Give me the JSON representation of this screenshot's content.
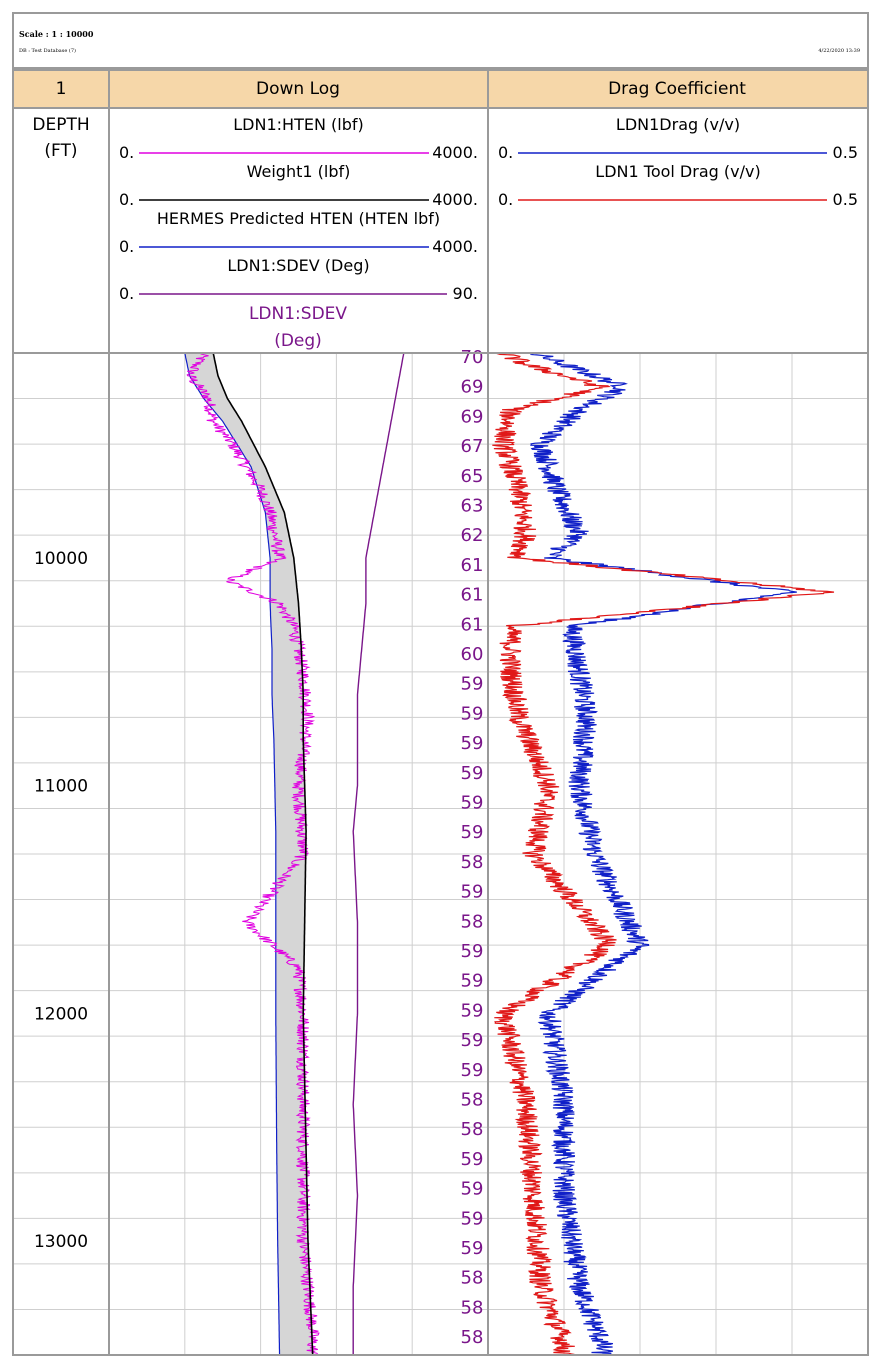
{
  "meta": {
    "scale": "Scale : 1 : 10000",
    "database": "DB : Test Database (7)",
    "datetime": "4/22/2020 13:39"
  },
  "header": {
    "col1": "1",
    "col2": "Down Log",
    "col3": "Drag Coefficient",
    "depth_label": "DEPTH",
    "depth_unit": "(FT)"
  },
  "colors": {
    "header_bg": "#f6d7a9",
    "magenta": "#e000e0",
    "black": "#000000",
    "blue": "#1020c8",
    "purple": "#7a168a",
    "red": "#e01818",
    "fill": "#d6d6d6",
    "grid_major": "#a0a0a0",
    "grid_minor": "#cfcfcf"
  },
  "chart_data": {
    "type": "line",
    "depth_axis": {
      "label": "DEPTH (FT)",
      "range": [
        9100,
        13500
      ],
      "ticks": [
        10000,
        11000,
        12000,
        13000
      ],
      "reversed": true
    },
    "tracks": [
      {
        "name": "Down Log",
        "curves": [
          {
            "name": "LDN1:HTEN (lbf)",
            "range": [
              0,
              4000
            ],
            "range_labels": [
              "0.",
              "4000."
            ],
            "color": "magenta",
            "depth": [
              9100,
              9200,
              9300,
              9400,
              9500,
              9600,
              9700,
              9800,
              9900,
              10000,
              10100,
              10200,
              10300,
              10500,
              10700,
              11000,
              11300,
              11600,
              11800,
              12000,
              12500,
              13000,
              13400
            ],
            "values": [
              1000,
              850,
              1050,
              1100,
              1300,
              1450,
              1600,
              1700,
              1750,
              1800,
              1250,
              1800,
              1950,
              2050,
              2100,
              2000,
              2050,
              1450,
              2000,
              2050,
              2050,
              2050,
              2150
            ]
          },
          {
            "name": "Weight1 (lbf)",
            "range": [
              0,
              4000
            ],
            "range_labels": [
              "0.",
              "4000."
            ],
            "color": "black",
            "depth": [
              9100,
              9200,
              9300,
              9400,
              9600,
              9800,
              10000,
              10200,
              10400,
              10600,
              10800,
              11200,
              12000,
              12600,
              13000,
              13500
            ],
            "values": [
              1100,
              1150,
              1250,
              1400,
              1650,
              1850,
              1950,
              2000,
              2030,
              2050,
              2050,
              2080,
              2050,
              2080,
              2100,
              2150
            ]
          },
          {
            "name": "HERMES Predicted HTEN (HTEN lbf)",
            "range": [
              0,
              4000
            ],
            "range_labels": [
              "0.",
              "4000."
            ],
            "color": "blue",
            "depth": [
              9100,
              9200,
              9300,
              9400,
              9600,
              9800,
              10000,
              10200,
              10400,
              10600,
              10800,
              11200,
              12000,
              12600,
              13000,
              13500
            ],
            "values": [
              800,
              850,
              1000,
              1200,
              1500,
              1650,
              1700,
              1700,
              1720,
              1720,
              1740,
              1760,
              1760,
              1770,
              1780,
              1800
            ]
          },
          {
            "name": "LDN1:SDEV (Deg)",
            "range": [
              0,
              90
            ],
            "range_labels": [
              "0.",
              "90."
            ],
            "color": "purple",
            "depth": [
              9100,
              9200,
              9400,
              9600,
              9800,
              10000,
              10200,
              10400,
              10600,
              10800,
              11000,
              11200,
              11600,
              12000,
              12400,
              12800,
              13200,
              13500
            ],
            "values": [
              70,
              69,
              67,
              65,
              63,
              61,
              61,
              60,
              59,
              59,
              59,
              58,
              59,
              59,
              58,
              59,
              58,
              58
            ]
          }
        ],
        "annotation": [
          "LDN1:SDEV",
          "(Deg)"
        ],
        "sdev_labels": [
          "70",
          "69",
          "69",
          "67",
          "65",
          "63",
          "62",
          "61",
          "61",
          "61",
          "60",
          "59",
          "59",
          "59",
          "59",
          "59",
          "59",
          "58",
          "59",
          "58",
          "59",
          "59",
          "59",
          "59",
          "59",
          "58",
          "58",
          "59",
          "59",
          "59",
          "59",
          "58",
          "58",
          "58"
        ]
      },
      {
        "name": "Drag Coefficient",
        "curves": [
          {
            "name": "LDN1Drag (v/v)",
            "range": [
              0,
              0.5
            ],
            "range_labels": [
              "0.",
              "0.5"
            ],
            "color": "blue",
            "depth": [
              9100,
              9150,
              9250,
              9350,
              9500,
              9700,
              9900,
              10000,
              10150,
              10300,
              10500,
              10700,
              11000,
              11300,
              11700,
              12000,
              12400,
              12800,
              13200,
              13450
            ],
            "values": [
              0.06,
              0.1,
              0.18,
              0.12,
              0.07,
              0.09,
              0.12,
              0.08,
              0.4,
              0.11,
              0.12,
              0.13,
              0.12,
              0.14,
              0.2,
              0.08,
              0.1,
              0.1,
              0.12,
              0.15
            ]
          },
          {
            "name": "LDN1 Tool Drag (v/v)",
            "range": [
              0,
              0.5
            ],
            "range_labels": [
              "0.",
              "0.5"
            ],
            "color": "red",
            "depth": [
              9100,
              9150,
              9250,
              9350,
              9500,
              9700,
              9900,
              10000,
              10150,
              10300,
              10500,
              10700,
              11000,
              11300,
              11700,
              12000,
              12400,
              12800,
              13200,
              13450
            ],
            "values": [
              0.02,
              0.05,
              0.15,
              0.03,
              0.02,
              0.04,
              0.05,
              0.04,
              0.45,
              0.03,
              0.03,
              0.04,
              0.08,
              0.06,
              0.16,
              0.02,
              0.05,
              0.06,
              0.07,
              0.1
            ]
          }
        ]
      }
    ]
  }
}
